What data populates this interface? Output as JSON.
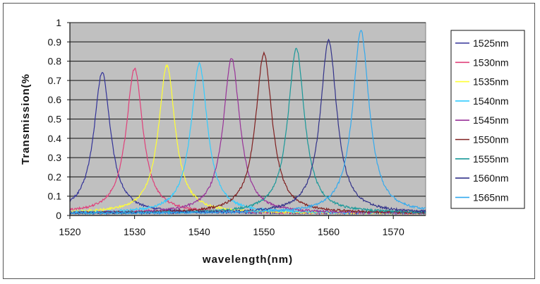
{
  "chart_data": {
    "type": "line",
    "title": "",
    "xlabel": "wavelength(nm)",
    "ylabel": "Transmission(%",
    "xlim": [
      1520,
      1575
    ],
    "ylim": [
      0,
      1
    ],
    "x_ticks": [
      1520,
      1530,
      1540,
      1550,
      1560,
      1570
    ],
    "y_ticks": [
      "0",
      "0.1",
      "0.2",
      "0.3",
      "0.4",
      "0.5",
      "0.6",
      "0.7",
      "0.8",
      "0.9",
      "1"
    ],
    "grid": "horizontal",
    "legend_position": "right",
    "background_color": "#c0c0c0",
    "series": [
      {
        "name": "1525nm",
        "center": 1525,
        "peak": 0.73,
        "color": "#333399"
      },
      {
        "name": "1530nm",
        "center": 1530,
        "peak": 0.75,
        "color": "#e0407a"
      },
      {
        "name": "1535nm",
        "center": 1535,
        "peak": 0.765,
        "color": "#ffff33"
      },
      {
        "name": "1540nm",
        "center": 1540,
        "peak": 0.775,
        "color": "#33ccff"
      },
      {
        "name": "1545nm",
        "center": 1545,
        "peak": 0.805,
        "color": "#993399"
      },
      {
        "name": "1550nm",
        "center": 1550,
        "peak": 0.83,
        "color": "#802020"
      },
      {
        "name": "1555nm",
        "center": 1555,
        "peak": 0.855,
        "color": "#1a9999"
      },
      {
        "name": "1560nm",
        "center": 1560,
        "peak": 0.895,
        "color": "#33338a"
      },
      {
        "name": "1565nm",
        "center": 1565,
        "peak": 0.945,
        "color": "#33aaee"
      }
    ]
  }
}
